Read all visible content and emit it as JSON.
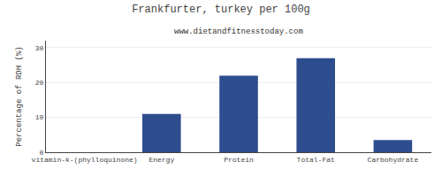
{
  "chart_data": {
    "type": "bar",
    "title": "Frankfurter, turkey per 100g",
    "subtitle": "www.dietandfitnesstoday.com",
    "categories": [
      "vitamin-k-(phylloquinone)",
      "Energy",
      "Protein",
      "Total-Fat",
      "Carbohydrate"
    ],
    "values": [
      0,
      11,
      22,
      27,
      3.5
    ],
    "color": "#2e4d8e",
    "ylabel": "Percentage of RDH (%)",
    "ylim": [
      0,
      32
    ],
    "yticks": [
      0,
      10,
      20,
      30
    ],
    "grid": true
  }
}
